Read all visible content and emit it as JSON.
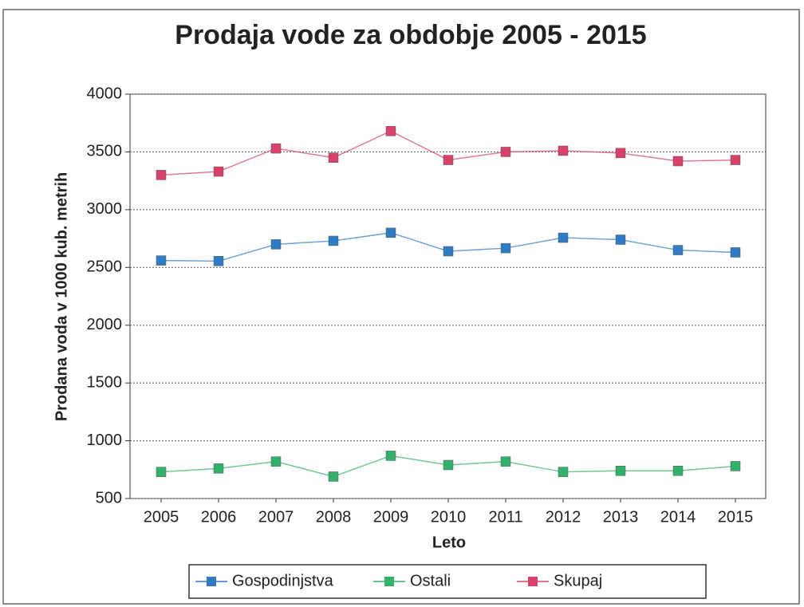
{
  "chart_data": {
    "type": "line",
    "title": "Prodaja vode za obdobje 2005 - 2015",
    "x_label": "Leto",
    "y_label": "Prodana voda v 1000 kub. metrih",
    "categories": [
      "2005",
      "2006",
      "2007",
      "2008",
      "2009",
      "2010",
      "2011",
      "2012",
      "2013",
      "2014",
      "2015"
    ],
    "series": [
      {
        "name": "Gospodinjstva",
        "color": "#2f7cc4",
        "values": [
          2560,
          2555,
          2700,
          2730,
          2800,
          2640,
          2667,
          2757,
          2740,
          2650,
          2630
        ]
      },
      {
        "name": "Ostali",
        "color": "#33b06a",
        "values": [
          730,
          760,
          820,
          690,
          870,
          790,
          820,
          730,
          740,
          740,
          780
        ]
      },
      {
        "name": "Skupaj",
        "color": "#d8426a",
        "values": [
          3300,
          3330,
          3530,
          3450,
          3680,
          3430,
          3500,
          3510,
          3490,
          3420,
          3430
        ]
      }
    ],
    "ylim": [
      500,
      4000
    ],
    "yticks": [
      500,
      1000,
      1500,
      2000,
      2500,
      3000,
      3500,
      4000
    ],
    "grid": true,
    "legend": "bottom"
  }
}
